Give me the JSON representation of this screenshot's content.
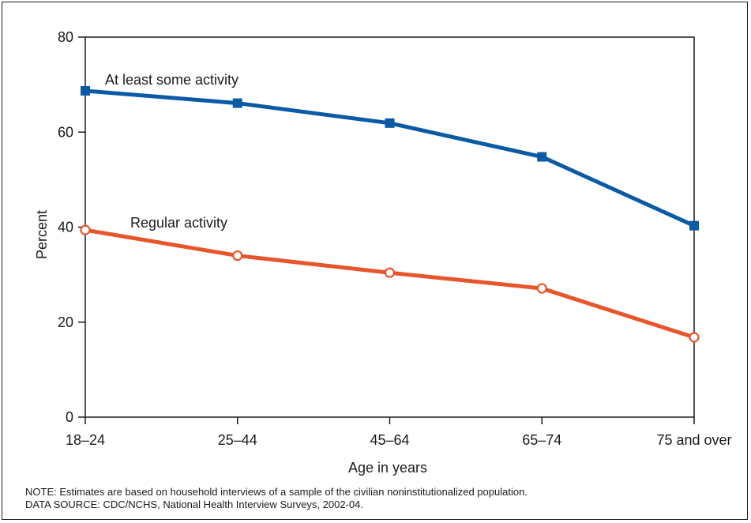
{
  "chart_data": {
    "type": "line",
    "xlabel": "Age in years",
    "ylabel": "Percent",
    "categories": [
      "18–24",
      "25–44",
      "45–64",
      "65–74",
      "75 and over"
    ],
    "ylim": [
      0,
      80
    ],
    "yticks": [
      0,
      20,
      40,
      60,
      80
    ],
    "grid": false,
    "series": [
      {
        "name": "At least some activity",
        "values": [
          68.7,
          66.1,
          61.9,
          54.8,
          40.3
        ],
        "color": "#0a5aa6",
        "marker": "filled-square"
      },
      {
        "name": "Regular activity",
        "values": [
          39.4,
          34.0,
          30.4,
          27.1,
          16.8
        ],
        "color": "#e8552b",
        "marker": "open-circle"
      }
    ]
  },
  "notes": {
    "note": "NOTE: Estimates are based on household interviews of a sample of the civilian noninstitutionalized population.",
    "source": "DATA SOURCE: CDC/NCHS, National Health Interview Surveys, 2002-04."
  }
}
